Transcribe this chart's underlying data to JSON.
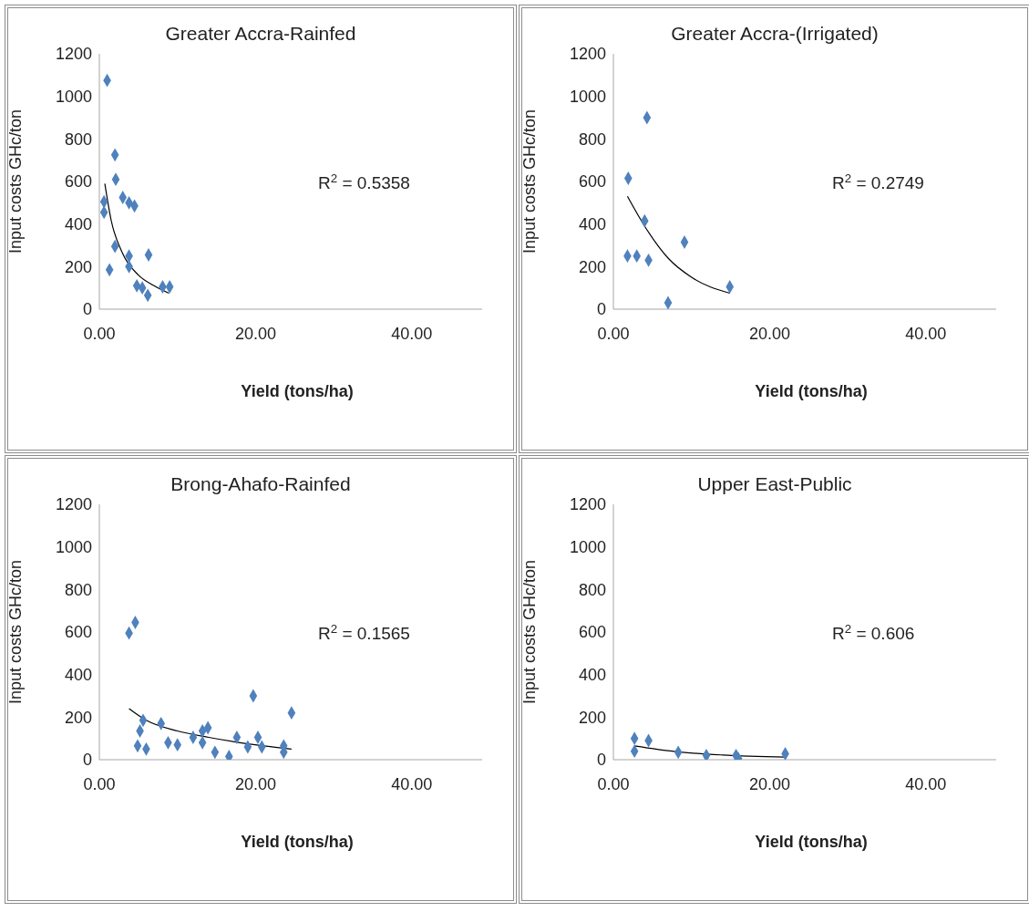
{
  "chart_data": [
    {
      "type": "scatter",
      "title": "Greater Accra-Rainfed",
      "xlabel": "Yield (tons/ha)",
      "ylabel": "Input costs GHc/ton",
      "xlim": [
        0,
        49
      ],
      "xticks": [
        {
          "value": 0,
          "label": "0.00"
        },
        {
          "value": 20,
          "label": "20.00"
        },
        {
          "value": 40,
          "label": "40.00"
        }
      ],
      "ylim": [
        0,
        1200
      ],
      "yticks": [
        0,
        200,
        400,
        600,
        800,
        1000,
        1200
      ],
      "grid": false,
      "legend": false,
      "marker": "diamond",
      "annotations": [
        "R$^{2}$ = 0.5358"
      ],
      "series": [
        {
          "color": "#4f81bd",
          "x": [
            1.0,
            2.0,
            2.1,
            0.6,
            0.6,
            3.0,
            3.8,
            4.5,
            2.0,
            1.3,
            3.8,
            3.8,
            6.3,
            4.8,
            5.5,
            6.2,
            8.1,
            9.0
          ],
          "values": [
            1075,
            725,
            610,
            505,
            455,
            525,
            500,
            485,
            295,
            185,
            250,
            200,
            255,
            110,
            100,
            65,
            105,
            105
          ]
        },
        {
          "type": "line",
          "color": "#000000",
          "marker": "none",
          "line_style": "solid",
          "x": [
            0.7,
            1.5,
            3,
            5,
            7,
            8.9
          ],
          "values": [
            590,
            420,
            260,
            160,
            110,
            75
          ]
        }
      ]
    },
    {
      "type": "scatter",
      "title": "Greater Accra-(Irrigated)",
      "xlabel": "Yield (tons/ha)",
      "ylabel": "Input costs GHc/ton",
      "xlim": [
        0,
        49
      ],
      "xticks": [
        {
          "value": 0,
          "label": "0.00"
        },
        {
          "value": 20,
          "label": "20.00"
        },
        {
          "value": 40,
          "label": "40.00"
        }
      ],
      "ylim": [
        0,
        1200
      ],
      "yticks": [
        0,
        200,
        400,
        600,
        800,
        1000,
        1200
      ],
      "grid": false,
      "legend": false,
      "marker": "diamond",
      "annotations": [
        "R$^{2}$ = 0.2749"
      ],
      "series": [
        {
          "color": "#4f81bd",
          "x": [
            4.3,
            1.9,
            4.0,
            9.1,
            1.8,
            3.0,
            4.5,
            14.9,
            7.0
          ],
          "values": [
            900,
            615,
            415,
            315,
            250,
            250,
            230,
            105,
            30
          ]
        },
        {
          "type": "line",
          "color": "#000000",
          "marker": "none",
          "line_style": "solid",
          "x": [
            1.8,
            4,
            7,
            10,
            14.9
          ],
          "values": [
            530,
            390,
            240,
            150,
            75
          ]
        }
      ]
    },
    {
      "type": "scatter",
      "title": "Brong-Ahafo-Rainfed",
      "xlabel": "Yield (tons/ha)",
      "ylabel": "Input costs GHc/ton",
      "xlim": [
        0,
        49
      ],
      "xticks": [
        {
          "value": 0,
          "label": "0.00"
        },
        {
          "value": 20,
          "label": "20.00"
        },
        {
          "value": 40,
          "label": "40.00"
        }
      ],
      "ylim": [
        0,
        1200
      ],
      "yticks": [
        0,
        200,
        400,
        600,
        800,
        1000,
        1200
      ],
      "grid": false,
      "legend": false,
      "marker": "diamond",
      "annotations": [
        "R$^{2}$ = 0.1565"
      ],
      "series": [
        {
          "color": "#4f81bd",
          "x": [
            4.6,
            3.8,
            19.7,
            24.6,
            5.6,
            7.9,
            5.2,
            13.9,
            13.2,
            4.9,
            6.0,
            8.8,
            10.0,
            12.0,
            13.2,
            17.6,
            20.3,
            19.0,
            20.8,
            23.6,
            23.6,
            14.8,
            16.6
          ],
          "values": [
            645,
            595,
            300,
            220,
            185,
            170,
            135,
            150,
            135,
            65,
            50,
            80,
            70,
            105,
            80,
            105,
            105,
            60,
            60,
            65,
            35,
            35,
            15
          ]
        },
        {
          "type": "line",
          "color": "#000000",
          "marker": "none",
          "line_style": "solid",
          "x": [
            3.8,
            6,
            10,
            14,
            18,
            24.6
          ],
          "values": [
            240,
            185,
            135,
            105,
            80,
            50
          ]
        }
      ]
    },
    {
      "type": "scatter",
      "title": "Upper East-Public",
      "xlabel": "Yield (tons/ha)",
      "ylabel": "Input costs GHc/ton",
      "xlim": [
        0,
        49
      ],
      "xticks": [
        {
          "value": 0,
          "label": "0.00"
        },
        {
          "value": 20,
          "label": "20.00"
        },
        {
          "value": 40,
          "label": "40.00"
        }
      ],
      "ylim": [
        0,
        1200
      ],
      "yticks": [
        0,
        200,
        400,
        600,
        800,
        1000,
        1200
      ],
      "grid": false,
      "legend": false,
      "marker": "diamond",
      "annotations": [
        "R$^{2}$ = 0.606"
      ],
      "series": [
        {
          "color": "#4f81bd",
          "x": [
            2.7,
            4.5,
            2.7,
            8.3,
            11.9,
            15.7,
            16.0,
            22.0
          ],
          "values": [
            100,
            90,
            40,
            35,
            20,
            20,
            5,
            28
          ]
        },
        {
          "type": "line",
          "color": "#000000",
          "marker": "none",
          "line_style": "solid",
          "x": [
            2.7,
            8,
            14,
            22
          ],
          "values": [
            65,
            38,
            22,
            12
          ]
        }
      ]
    }
  ]
}
